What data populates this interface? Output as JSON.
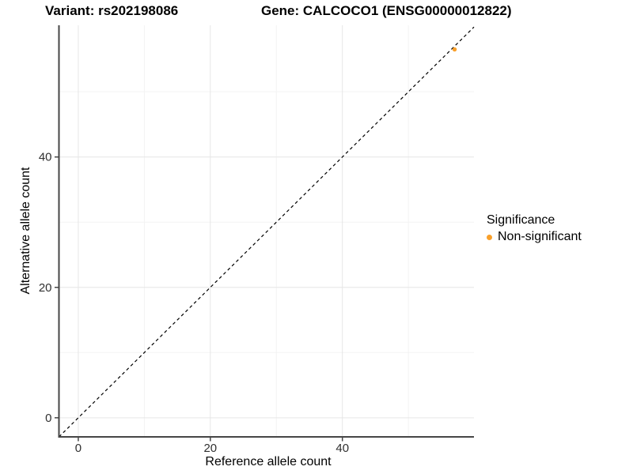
{
  "chart_data": {
    "type": "scatter",
    "titles": {
      "left": "Variant: rs202198086",
      "right": "Gene: CALCOCO1 (ENSG00000012822)"
    },
    "xlabel": "Reference allele count",
    "ylabel": "Alternative allele count",
    "xlim": [
      -2.93,
      59.93
    ],
    "ylim": [
      -2.93,
      60.2
    ],
    "x_major_ticks": [
      0,
      20,
      40
    ],
    "y_major_ticks": [
      0,
      20,
      40
    ],
    "x_minor_ticks": [
      10,
      30,
      50
    ],
    "y_minor_ticks": [
      10,
      30,
      50
    ],
    "grid": "major+minor",
    "identity_line": {
      "slope": 1,
      "intercept": 0,
      "style": "dashed",
      "color": "#000000"
    },
    "series": [
      {
        "name": "Non-significant",
        "color": "#F9A02B",
        "points": [
          {
            "x": 57,
            "y": 56.5
          }
        ]
      }
    ],
    "legend": {
      "title": "Significance",
      "position": "right",
      "items": [
        {
          "label": "Non-significant",
          "color": "#F9A02B"
        }
      ]
    }
  },
  "colors": {
    "grid_major": "#E6E6E6",
    "grid_minor": "#F3F3F3",
    "axis": "#464646",
    "tick_text": "#303030"
  }
}
